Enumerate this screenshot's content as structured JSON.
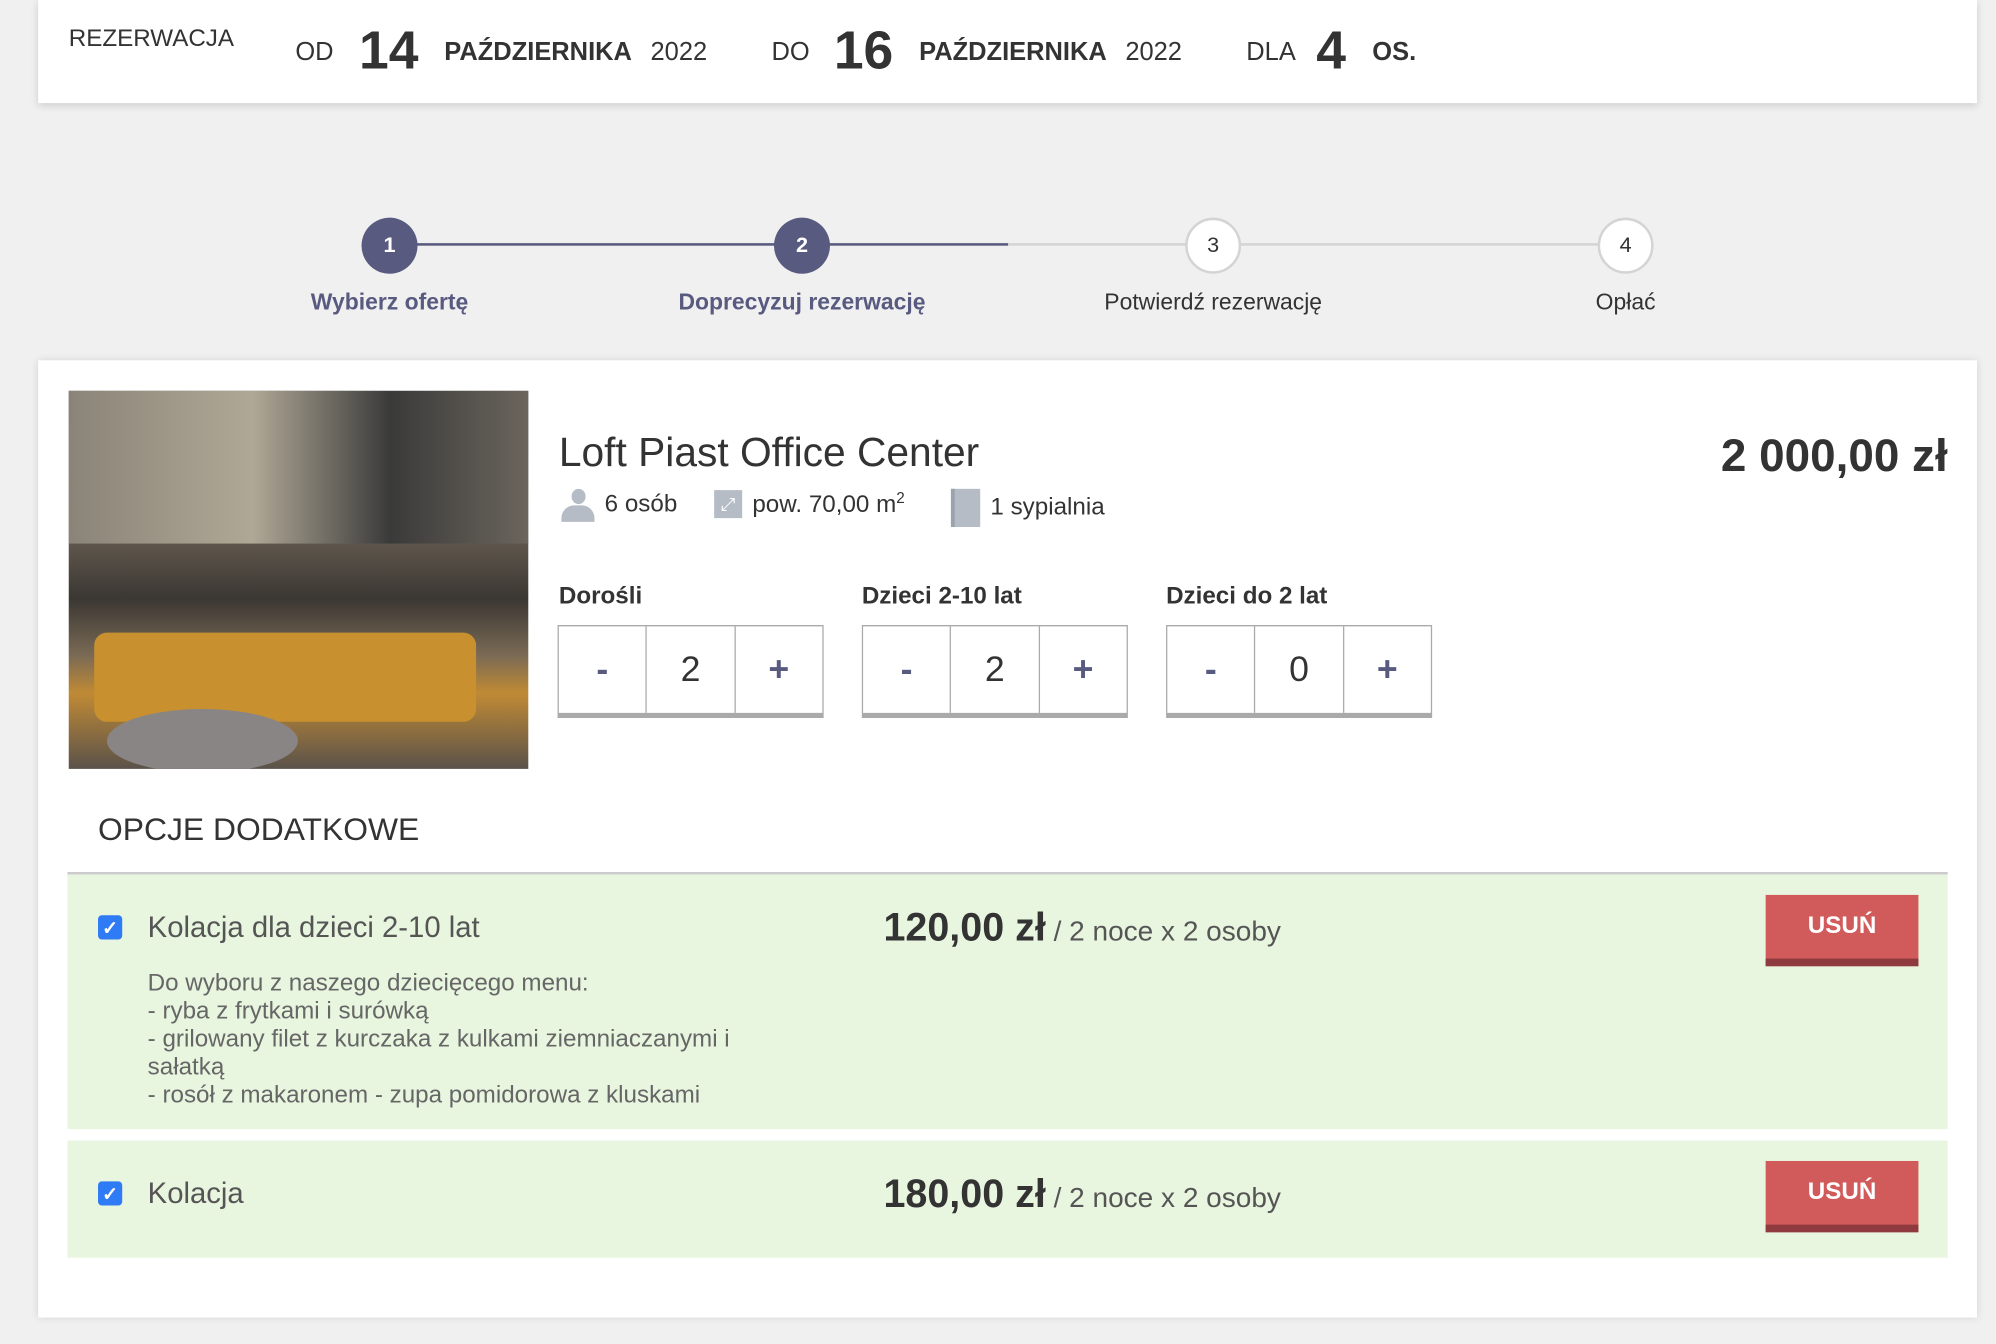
{
  "header": {
    "title": "REZERWACJA",
    "from_label": "OD",
    "from_day": "14",
    "from_month": "PAŹDZIERNIKA",
    "from_year": "2022",
    "to_label": "DO",
    "to_day": "16",
    "to_month": "PAŹDZIERNIKA",
    "to_year": "2022",
    "for_label": "DLA",
    "persons": "4",
    "persons_unit": "OS."
  },
  "steps": [
    {
      "number": "1",
      "label": "Wybierz ofertę",
      "state": "done"
    },
    {
      "number": "2",
      "label": "Doprecyzuj rezerwację",
      "state": "current"
    },
    {
      "number": "3",
      "label": "Potwierdź rezerwację",
      "state": "todo"
    },
    {
      "number": "4",
      "label": "Opłać",
      "state": "todo"
    }
  ],
  "offer": {
    "title": "Loft Piast Office Center",
    "price": "2 000,00 zł",
    "capacity": "6 osób",
    "area": "pow. 70,00 m",
    "area_sup": "2",
    "bedrooms": "1 sypialnia",
    "guests": [
      {
        "label": "Dorośli",
        "value": "2",
        "minus": "-",
        "plus": "+"
      },
      {
        "label": "Dzieci 2-10 lat",
        "value": "2",
        "minus": "-",
        "plus": "+"
      },
      {
        "label": "Dzieci do 2 lat",
        "value": "0",
        "minus": "-",
        "plus": "+"
      }
    ]
  },
  "extras": {
    "title": "OPCJE DODATKOWE",
    "items": [
      {
        "name": "Kolacja dla dzieci 2-10 lat",
        "checked": true,
        "price": "120,00 zł",
        "per": " / 2 noce x 2 osoby",
        "remove": "USUŃ",
        "description": [
          "Do wyboru z naszego dziecięcego menu:",
          "- ryba z frytkami i surówką",
          "- grilowany filet z kurczaka z kulkami ziemniaczanymi i sałatką",
          "- rosół z makaronem - zupa pomidorowa z kluskami"
        ]
      },
      {
        "name": "Kolacja",
        "checked": true,
        "price": "180,00 zł",
        "per": " / 2 noce x 2 osoby",
        "remove": "USUŃ"
      }
    ]
  },
  "colors": {
    "accent": "#585a80",
    "remove": "#d15b5b",
    "option_bg": "#e8f5df",
    "checkbox": "#2f7bf5"
  }
}
